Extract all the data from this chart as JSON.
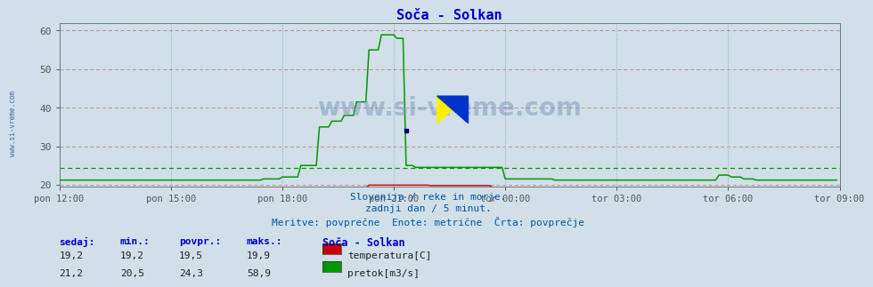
{
  "title": "Soča - Solkan",
  "title_color": "#0000cc",
  "bg_color": "#d0dfe8",
  "ylim": [
    19.5,
    62
  ],
  "yticks": [
    20,
    30,
    40,
    50,
    60
  ],
  "xtick_labels": [
    "pon 12:00",
    "pon 15:00",
    "pon 18:00",
    "pon 21:00",
    "tor 00:00",
    "tor 03:00",
    "tor 06:00",
    "tor 09:00"
  ],
  "xtick_positions": [
    0,
    36,
    72,
    108,
    144,
    180,
    216,
    252
  ],
  "n_points": 252,
  "temp_color": "#cc0000",
  "flow_color": "#009900",
  "avg_flow": 24.3,
  "avg_temp": 19.5,
  "subtitle1": "Slovenija / reke in morje.",
  "subtitle2": "zadnji dan / 5 minut.",
  "subtitle3": "Meritve: povprečne  Enote: metrične  Črta: povprečje",
  "subtitle_color": "#0055aa",
  "legend_title": "Soča - Solkan",
  "legend_title_color": "#0000cc",
  "label_temp": "temperatura[C]",
  "label_flow": "pretok[m3/s]",
  "col_headers": [
    "sedaj:",
    "min.:",
    "povpr.:",
    "maks.:"
  ],
  "col_header_color": "#0000cc",
  "row1_vals": [
    "19,2",
    "19,2",
    "19,5",
    "19,9"
  ],
  "row2_vals": [
    "21,2",
    "20,5",
    "24,3",
    "58,9"
  ],
  "watermark_text": "www.si-vreme.com",
  "watermark_color": "#7799bb",
  "watermark_alpha": 0.5,
  "sidebar_text": "www.si-vreme.com",
  "sidebar_color": "#4466aa",
  "logo_yellow_color": "#ffee00",
  "logo_blue_color": "#0033cc"
}
